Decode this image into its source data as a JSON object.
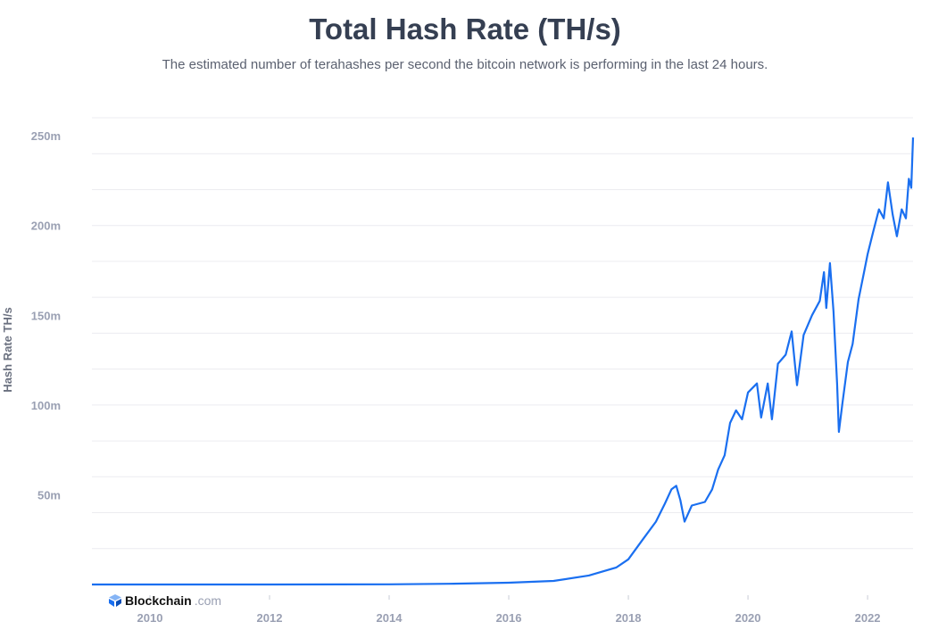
{
  "chart_data": {
    "type": "line",
    "title": "Total Hash Rate (TH/s)",
    "subtitle": "The estimated number of terahashes per second the bitcoin network is performing in the last 24 hours.",
    "ylabel": "Hash Rate TH/s",
    "xlabel": "",
    "xlim": [
      2009.03,
      2022.76
    ],
    "ylim": [
      0,
      261
    ],
    "grid": true,
    "color": "#1a6ff0",
    "y_ticks": [
      {
        "value": 50,
        "label": "50m"
      },
      {
        "value": 100,
        "label": "100m"
      },
      {
        "value": 150,
        "label": "150m"
      },
      {
        "value": 200,
        "label": "200m"
      },
      {
        "value": 250,
        "label": "250m"
      }
    ],
    "x_ticks": [
      {
        "value": 2010,
        "label": "2010"
      },
      {
        "value": 2012,
        "label": "2012"
      },
      {
        "value": 2014,
        "label": "2014"
      },
      {
        "value": 2016,
        "label": "2016"
      },
      {
        "value": 2018,
        "label": "2018"
      },
      {
        "value": 2020,
        "label": "2020"
      },
      {
        "value": 2022,
        "label": "2022"
      }
    ],
    "series": [
      {
        "points": [
          [
            2009.03,
            0
          ],
          [
            2012,
            0.01
          ],
          [
            2014,
            0.1
          ],
          [
            2015,
            0.4
          ],
          [
            2016,
            1
          ],
          [
            2016.75,
            2
          ],
          [
            2017.34,
            5
          ],
          [
            2017.8,
            9.5
          ],
          [
            2018,
            14
          ],
          [
            2018.24,
            25
          ],
          [
            2018.46,
            35
          ],
          [
            2018.61,
            45
          ],
          [
            2018.72,
            53
          ],
          [
            2018.8,
            55
          ],
          [
            2018.87,
            47
          ],
          [
            2018.94,
            35
          ],
          [
            2019.06,
            44
          ],
          [
            2019.28,
            46
          ],
          [
            2019.4,
            53
          ],
          [
            2019.5,
            64
          ],
          [
            2019.61,
            72
          ],
          [
            2019.7,
            90
          ],
          [
            2019.8,
            97
          ],
          [
            2019.9,
            92
          ],
          [
            2020,
            107
          ],
          [
            2020.15,
            112
          ],
          [
            2020.22,
            93
          ],
          [
            2020.33,
            112
          ],
          [
            2020.4,
            92
          ],
          [
            2020.5,
            123
          ],
          [
            2020.63,
            128
          ],
          [
            2020.73,
            141
          ],
          [
            2020.82,
            111
          ],
          [
            2020.93,
            139
          ],
          [
            2021.07,
            150
          ],
          [
            2021.2,
            158
          ],
          [
            2021.27,
            174
          ],
          [
            2021.31,
            154
          ],
          [
            2021.37,
            179
          ],
          [
            2021.43,
            152
          ],
          [
            2021.49,
            112
          ],
          [
            2021.52,
            85
          ],
          [
            2021.58,
            101
          ],
          [
            2021.67,
            124
          ],
          [
            2021.75,
            134
          ],
          [
            2021.85,
            159
          ],
          [
            2021.94,
            174
          ],
          [
            2022,
            184
          ],
          [
            2022.09,
            196
          ],
          [
            2022.19,
            209
          ],
          [
            2022.27,
            204
          ],
          [
            2022.34,
            224
          ],
          [
            2022.42,
            206
          ],
          [
            2022.49,
            194
          ],
          [
            2022.57,
            209
          ],
          [
            2022.64,
            204
          ],
          [
            2022.69,
            226
          ],
          [
            2022.73,
            221
          ],
          [
            2022.76,
            249
          ]
        ]
      }
    ]
  },
  "branding": {
    "name": "Blockchain",
    "domain": ".com"
  }
}
